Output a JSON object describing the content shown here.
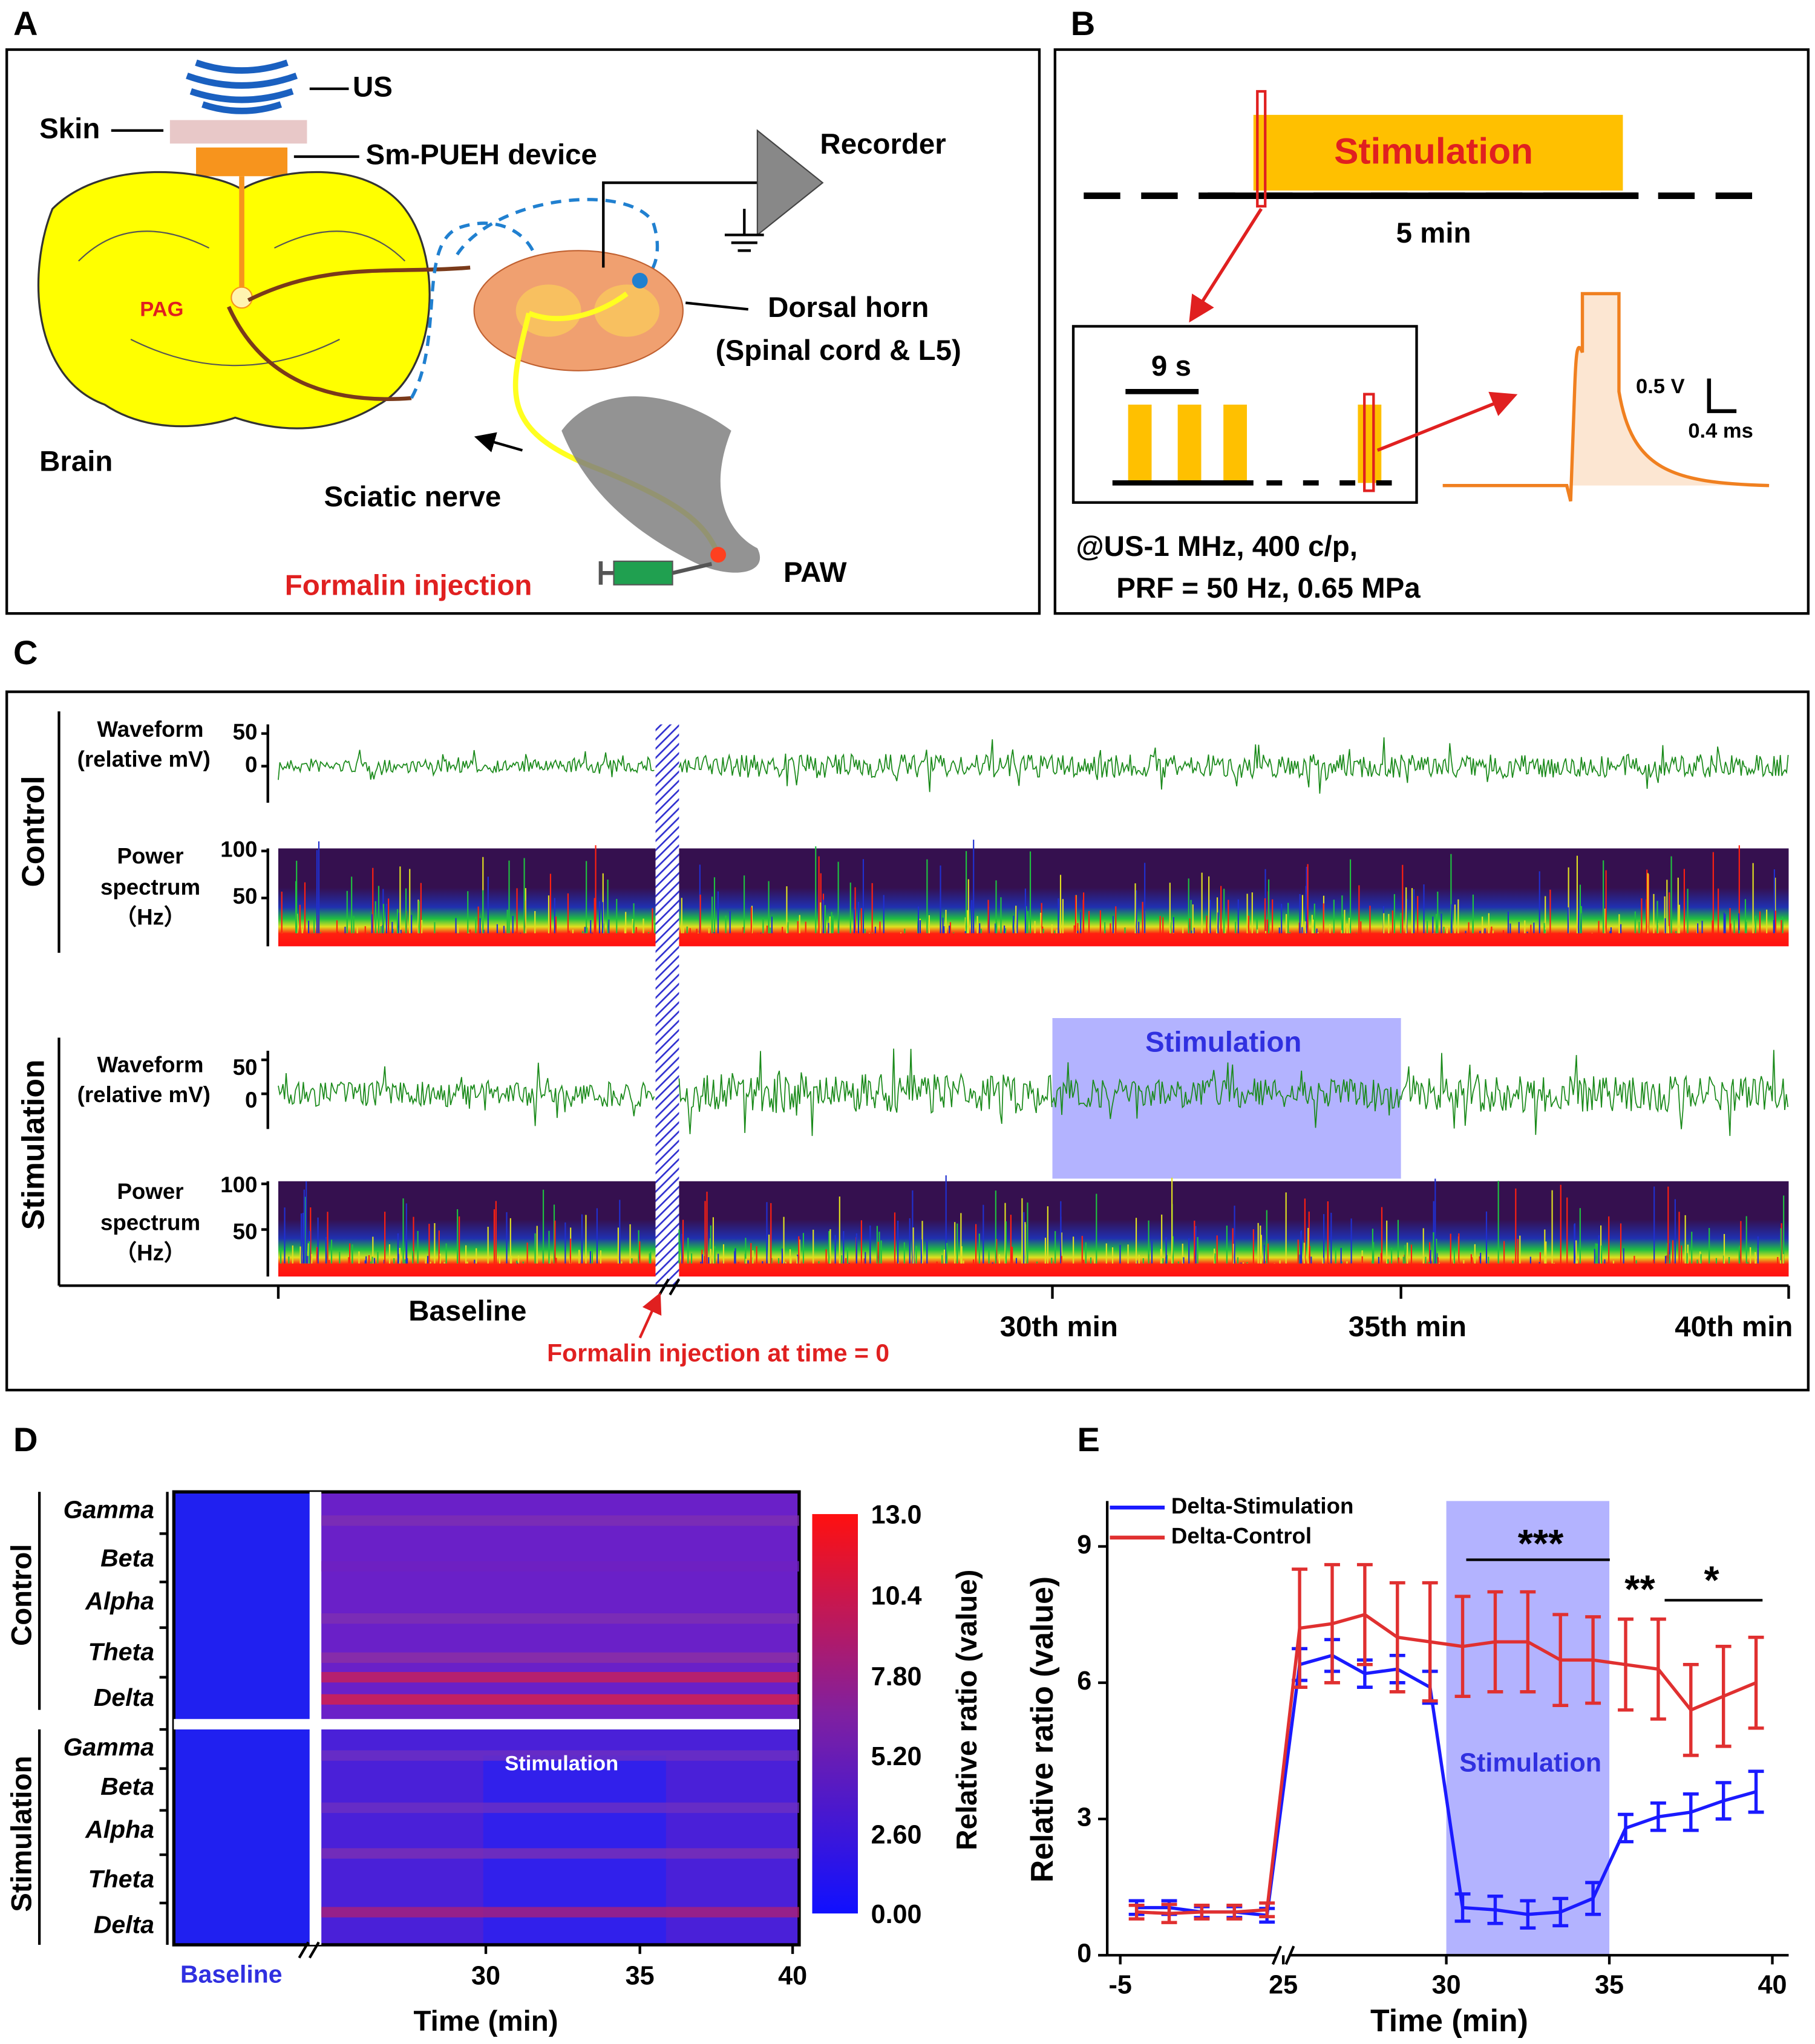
{
  "panel_a": {
    "label": "A",
    "us": "US",
    "skin": "Skin",
    "device": "Sm-PUEH device",
    "recorder": "Recorder",
    "pag": "PAG",
    "dorsal_horn": "Dorsal horn",
    "spinal_cord": "(Spinal cord & L5)",
    "brain": "Brain",
    "sciatic_nerve": "Sciatic nerve",
    "formalin": "Formalin injection",
    "paw": "PAW"
  },
  "panel_b": {
    "label": "B",
    "stimulation": "Stimulation",
    "duration": "5 min",
    "interval": "9 s",
    "scale_v": "0.5 V",
    "scale_t": "0.4 ms",
    "params": [
      "@US-1 MHz, 400 c/p,",
      "PRF = 50 Hz, 0.65 MPa"
    ]
  },
  "panel_c": {
    "label": "C",
    "groups": [
      "Control",
      "Stimulation"
    ],
    "waveform": [
      "Waveform",
      "(relative mV)"
    ],
    "waveform_ticks": [
      "50",
      "0"
    ],
    "power": [
      "Power",
      "spectrum",
      "（Hz）"
    ],
    "power_ticks": [
      "100",
      "50"
    ],
    "stimulation_box": "Stimulation",
    "baseline": "Baseline",
    "injection": "Formalin injection at time = 0",
    "time_labels": [
      "30th min",
      "35th min",
      "40th min"
    ]
  },
  "panel_d": {
    "label": "D",
    "groups": [
      "Control",
      "Stimulation"
    ],
    "bands": [
      "Gamma",
      "Beta",
      "Alpha",
      "Theta",
      "Delta"
    ],
    "stimulation": "Stimulation",
    "colorbar_ticks": [
      "13.0",
      "10.4",
      "7.80",
      "5.20",
      "2.60",
      "0.00"
    ],
    "colorbar_label": "Relative ratio (value)",
    "baseline": "Baseline",
    "time_ticks": [
      "30",
      "35",
      "40"
    ],
    "xlabel": "Time (min)"
  },
  "panel_e_label": "E",
  "chart_data": {
    "type": "line",
    "xlabel": "Time (min)",
    "ylabel": "Relative ratio (value)",
    "x": [
      -4.5,
      -3.5,
      -2.5,
      -1.5,
      -0.5,
      25.5,
      26.5,
      27.5,
      28.5,
      29.5,
      30.5,
      31.5,
      32.5,
      33.5,
      34.5,
      35.5,
      36.5,
      37.5,
      38.5,
      39.5
    ],
    "series": [
      {
        "name": "Delta-Stimulation",
        "color": "#1a1aff",
        "values": [
          1.05,
          1.05,
          0.95,
          0.95,
          0.88,
          6.4,
          6.6,
          6.2,
          6.3,
          5.9,
          1.05,
          1.0,
          0.9,
          0.95,
          1.25,
          2.8,
          3.05,
          3.15,
          3.4,
          3.6
        ],
        "errors": [
          0.15,
          0.15,
          0.12,
          0.12,
          0.15,
          0.35,
          0.35,
          0.3,
          0.3,
          0.35,
          0.3,
          0.3,
          0.3,
          0.3,
          0.35,
          0.3,
          0.3,
          0.4,
          0.4,
          0.45
        ]
      },
      {
        "name": "Delta-Control",
        "color": "#e03030",
        "values": [
          0.95,
          0.92,
          0.95,
          0.95,
          1.0,
          7.2,
          7.3,
          7.5,
          7.0,
          6.9,
          6.8,
          6.9,
          6.9,
          6.5,
          6.5,
          6.4,
          6.3,
          5.4,
          5.7,
          6.0
        ],
        "errors": [
          0.15,
          0.2,
          0.15,
          0.15,
          0.15,
          1.3,
          1.3,
          1.1,
          1.2,
          1.3,
          1.1,
          1.1,
          1.1,
          1.0,
          0.95,
          1.0,
          1.1,
          1.0,
          1.1,
          1.0
        ]
      }
    ],
    "xlim": [
      -5.4,
      40.5
    ],
    "xbreak": [
      0,
      25
    ],
    "xticks": [
      -5,
      25,
      30,
      35,
      40
    ],
    "ylim": [
      0,
      10
    ],
    "yticks": [
      0,
      3,
      6,
      9
    ],
    "shade": [
      30,
      35
    ],
    "shade_label": "Stimulation",
    "annotations": [
      "***",
      "**",
      "*"
    ]
  }
}
